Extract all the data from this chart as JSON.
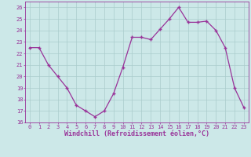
{
  "x": [
    0,
    1,
    2,
    3,
    4,
    5,
    6,
    7,
    8,
    9,
    10,
    11,
    12,
    13,
    14,
    15,
    16,
    17,
    18,
    19,
    20,
    21,
    22,
    23
  ],
  "y": [
    22.5,
    22.5,
    21.0,
    20.0,
    19.0,
    17.5,
    17.0,
    16.5,
    17.0,
    18.5,
    20.8,
    23.4,
    23.4,
    23.2,
    24.1,
    25.0,
    26.0,
    24.7,
    24.7,
    24.8,
    24.0,
    22.5,
    19.0,
    17.3
  ],
  "line_color": "#993399",
  "marker_color": "#993399",
  "bg_color": "#cce8e8",
  "grid_color": "#aacccc",
  "xlabel": "Windchill (Refroidissement éolien,°C)",
  "ylabel": "",
  "title": "",
  "xlim": [
    -0.5,
    23.5
  ],
  "ylim": [
    16,
    26.5
  ],
  "yticks": [
    16,
    17,
    18,
    19,
    20,
    21,
    22,
    23,
    24,
    25,
    26
  ],
  "xticks": [
    0,
    1,
    2,
    3,
    4,
    5,
    6,
    7,
    8,
    9,
    10,
    11,
    12,
    13,
    14,
    15,
    16,
    17,
    18,
    19,
    20,
    21,
    22,
    23
  ],
  "tick_color": "#993399",
  "label_color": "#993399",
  "axis_color": "#993399",
  "tick_fontsize": 5.0,
  "xlabel_fontsize": 6.0
}
